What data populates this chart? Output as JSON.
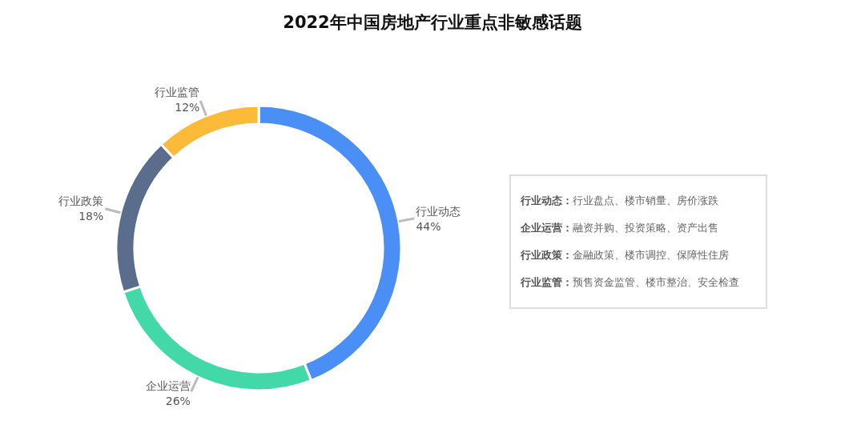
{
  "chart_data": {
    "type": "donut",
    "title": "2022年中国房地产行业重点非敏感话题",
    "categories": [
      "行业动态",
      "企业运营",
      "行业政策",
      "行业监管"
    ],
    "values": [
      44,
      26,
      18,
      12
    ],
    "value_labels": [
      "44%",
      "26%",
      "18%",
      "12%"
    ],
    "colors": [
      "#4a8ff5",
      "#42d8a8",
      "#5a6d8c",
      "#fbbb38"
    ],
    "annotations": [
      "行业动态：行业盘点、楼市销量、房价涨跌",
      "企业运营：融资并购、投资策略、资产出售",
      "行业政策：金融政策、楼市调控、保障性住房",
      "行业监管：预售资金监管、楼市整治、安全检查"
    ]
  }
}
